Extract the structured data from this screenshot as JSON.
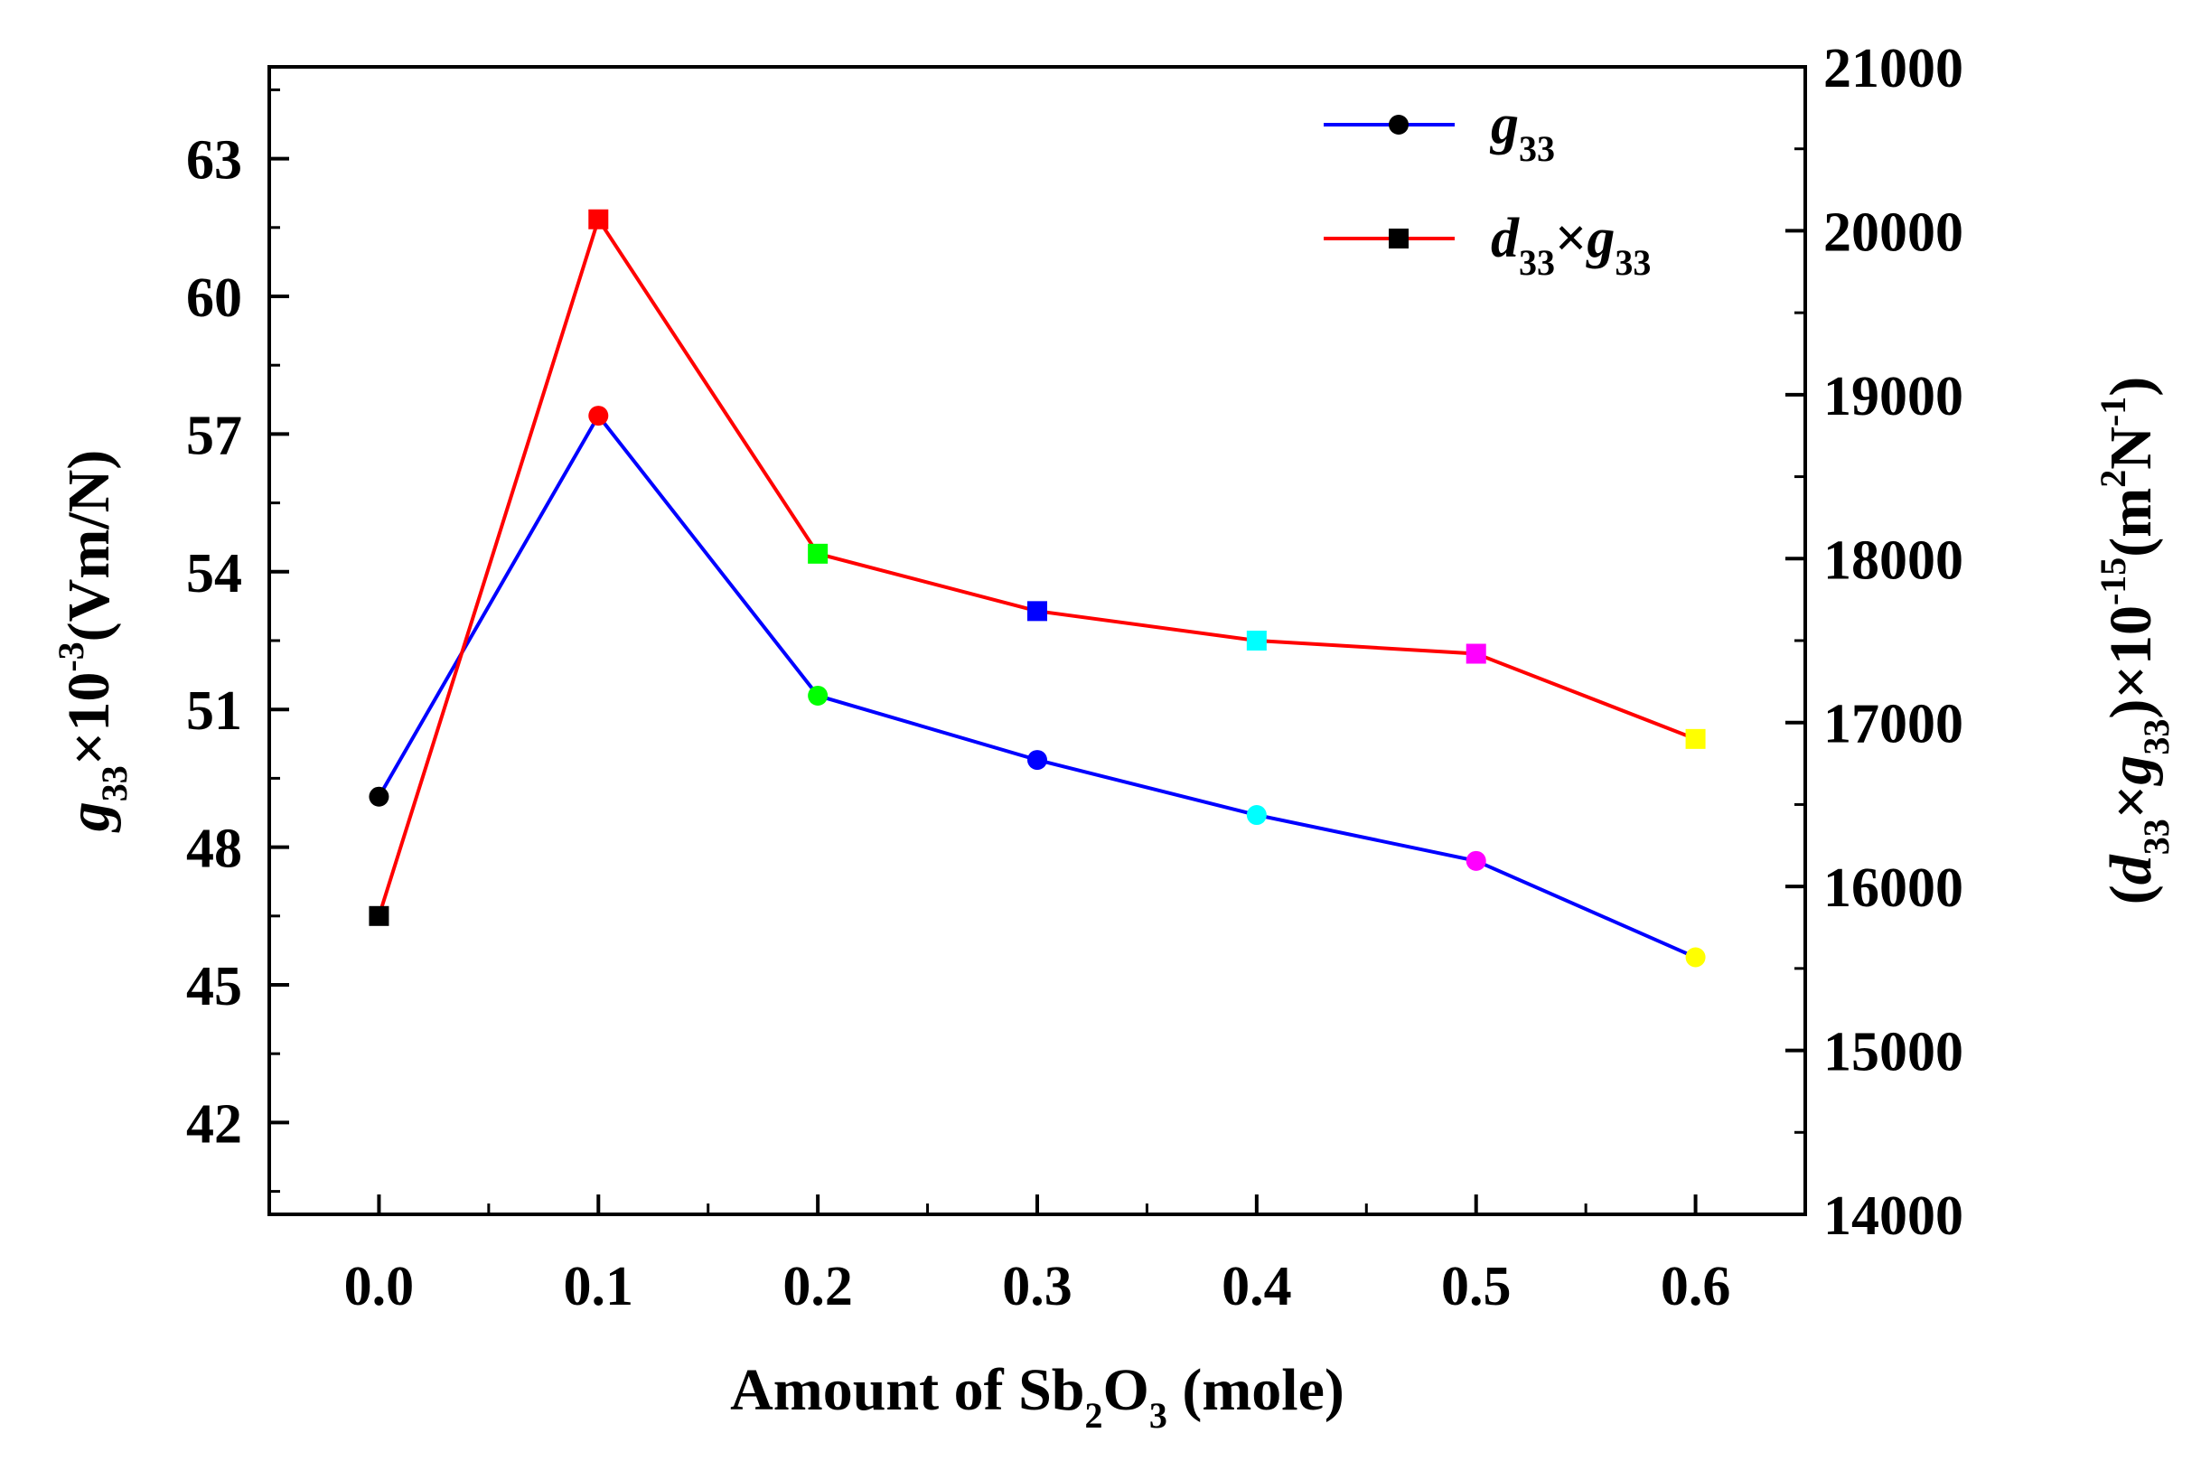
{
  "chart_data": {
    "type": "line",
    "xlabel": {
      "pre": "Amount of Sb",
      "sub1": "2",
      "mid": "O",
      "sub2": "3",
      "post": " (mole)"
    },
    "ylabel_left": {
      "g": "g",
      "sub": "33",
      "mult": "×10",
      "sup": "-3",
      "unit": "(Vm/N)"
    },
    "ylabel_right": {
      "open": "(",
      "d": "d",
      "sub1": "33",
      "times": "×",
      "g": "g",
      "sub2": "33",
      "mult": ")×10",
      "sup1": "-15",
      "unit_open": "(m",
      "sup2": "2",
      "unit_n": "N",
      "sup3": "-1",
      "close": ")"
    },
    "x_ticks": [
      "0.0",
      "0.1",
      "0.2",
      "0.3",
      "0.4",
      "0.5",
      "0.6"
    ],
    "x_tick_values": [
      0.0,
      0.1,
      0.2,
      0.3,
      0.4,
      0.5,
      0.6
    ],
    "xlim": [
      -0.05,
      0.65
    ],
    "y_left_ticks": [
      "42",
      "45",
      "48",
      "51",
      "54",
      "57",
      "60",
      "63"
    ],
    "y_left_tick_values": [
      42,
      45,
      48,
      51,
      54,
      57,
      60,
      63
    ],
    "y_left_lim": [
      40,
      65
    ],
    "y_right_ticks": [
      "14000",
      "15000",
      "16000",
      "17000",
      "18000",
      "19000",
      "20000",
      "21000"
    ],
    "y_right_tick_values": [
      14000,
      15000,
      16000,
      17000,
      18000,
      19000,
      20000,
      21000
    ],
    "y_right_lim": [
      14000,
      21000
    ],
    "x": [
      0.0,
      0.1,
      0.2,
      0.3,
      0.4,
      0.5,
      0.6
    ],
    "point_colors": [
      "#000000",
      "#ff0000",
      "#00ff00",
      "#0000ff",
      "#00ffff",
      "#ff00ff",
      "#ffff00"
    ],
    "series": [
      {
        "name": "g33",
        "axis": "left",
        "line_color": "#0000ff",
        "marker": "circle",
        "values": [
          49.1,
          57.4,
          51.3,
          49.9,
          48.7,
          47.7,
          45.6
        ]
      },
      {
        "name": "d33×g33",
        "axis": "right",
        "line_color": "#ff0000",
        "marker": "square",
        "values": [
          15820,
          20070,
          18030,
          17680,
          17500,
          17420,
          16900
        ]
      }
    ],
    "legend": {
      "position": "top-right",
      "entry1": {
        "g": "g",
        "sub": "33"
      },
      "entry2": {
        "d": "d",
        "sub1": "33",
        "times": "×",
        "g": "g",
        "sub2": "33"
      }
    }
  }
}
